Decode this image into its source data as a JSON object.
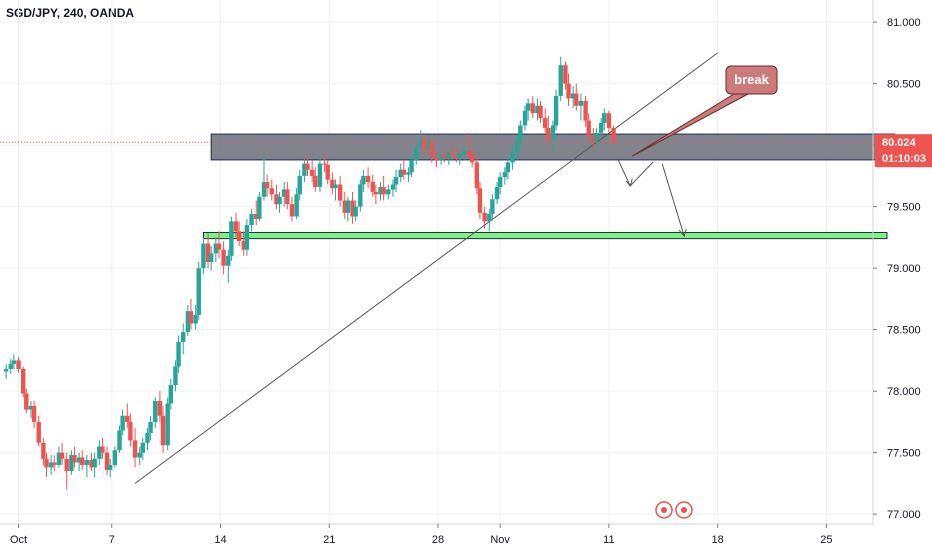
{
  "header": {
    "symbol": "SGD/JPY, 240, OANDA"
  },
  "colors": {
    "up": "#26a69a",
    "down": "#ef5350",
    "grid": "#eef0f3",
    "resistance_zone": "#6b6e78",
    "support_zone": "#7cf57c",
    "price_badge": "#ef5350",
    "callout": "#cd7a7a"
  },
  "chart_data": {
    "type": "candlestick",
    "title": "SGD/JPY, 240, OANDA",
    "ylim": [
      76.92,
      81.18
    ],
    "y_ticks": [
      "81.000",
      "80.500",
      "80.000",
      "79.500",
      "79.000",
      "78.500",
      "78.000",
      "77.500",
      "77.000"
    ],
    "y_tick_values": [
      81.0,
      80.5,
      80.0,
      79.5,
      79.0,
      78.5,
      78.0,
      77.5,
      77.0
    ],
    "x_ticks": [
      "Oct",
      "7",
      "14",
      "21",
      "28",
      "Nov",
      "11",
      "18",
      "25"
    ],
    "x_tick_days": [
      1,
      7,
      14,
      21,
      28,
      32,
      39,
      46,
      53
    ],
    "x_range_days": [
      0,
      56
    ],
    "current_price": "80.024",
    "countdown": "01:10:03",
    "current_price_value": 80.024,
    "grid": true,
    "annotations": {
      "callout_text": "break",
      "resistance_zone": {
        "day_start": 13.4,
        "day_end": 57.4,
        "price_low": 79.88,
        "price_high": 80.09
      },
      "support_zone": {
        "day_start": 12.9,
        "day_end": 56.9,
        "price_low": 79.24,
        "price_high": 79.29
      },
      "trendline": {
        "from": [
          8.5,
          77.25
        ],
        "to": [
          46.0,
          80.75
        ]
      }
    },
    "candles": [
      [
        0.2,
        78.16,
        78.22,
        78.1,
        78.18
      ],
      [
        0.5,
        78.18,
        78.26,
        78.14,
        78.22
      ],
      [
        0.7,
        78.22,
        78.3,
        78.18,
        78.25
      ],
      [
        1.0,
        78.25,
        78.28,
        78.15,
        78.18
      ],
      [
        1.3,
        78.18,
        78.2,
        77.95,
        77.98
      ],
      [
        1.5,
        77.98,
        78.02,
        77.82,
        77.85
      ],
      [
        1.8,
        77.85,
        77.92,
        77.78,
        77.88
      ],
      [
        2.0,
        77.88,
        77.92,
        77.7,
        77.75
      ],
      [
        2.3,
        77.75,
        77.8,
        77.55,
        77.58
      ],
      [
        2.6,
        77.58,
        77.62,
        77.4,
        77.45
      ],
      [
        2.8,
        77.45,
        77.5,
        77.3,
        77.38
      ],
      [
        3.1,
        77.38,
        77.48,
        77.32,
        77.42
      ],
      [
        3.3,
        77.42,
        77.48,
        77.35,
        77.4
      ],
      [
        3.6,
        77.4,
        77.55,
        77.38,
        77.5
      ],
      [
        3.8,
        77.5,
        77.58,
        77.4,
        77.45
      ],
      [
        4.1,
        77.45,
        77.5,
        77.2,
        77.35
      ],
      [
        4.4,
        77.35,
        77.52,
        77.32,
        77.48
      ],
      [
        4.6,
        77.48,
        77.55,
        77.38,
        77.42
      ],
      [
        4.9,
        77.42,
        77.5,
        77.35,
        77.46
      ],
      [
        5.1,
        77.46,
        77.52,
        77.36,
        77.4
      ],
      [
        5.4,
        77.4,
        77.48,
        77.3,
        77.44
      ],
      [
        5.7,
        77.44,
        77.5,
        77.35,
        77.38
      ],
      [
        5.9,
        77.38,
        77.5,
        77.3,
        77.45
      ],
      [
        6.2,
        77.45,
        77.6,
        77.4,
        77.55
      ],
      [
        6.4,
        77.55,
        77.62,
        77.45,
        77.5
      ],
      [
        6.7,
        77.5,
        77.55,
        77.32,
        77.36
      ],
      [
        6.9,
        77.36,
        77.45,
        77.3,
        77.4
      ],
      [
        7.2,
        77.4,
        77.55,
        77.38,
        77.52
      ],
      [
        7.5,
        77.52,
        77.72,
        77.5,
        77.68
      ],
      [
        7.7,
        77.68,
        77.85,
        77.64,
        77.8
      ],
      [
        8.0,
        77.8,
        77.9,
        77.7,
        77.75
      ],
      [
        8.2,
        77.75,
        77.82,
        77.55,
        77.6
      ],
      [
        8.5,
        77.6,
        77.7,
        77.38,
        77.46
      ],
      [
        8.8,
        77.46,
        77.55,
        77.4,
        77.5
      ],
      [
        9.0,
        77.5,
        77.62,
        77.44,
        77.58
      ],
      [
        9.3,
        77.58,
        77.7,
        77.52,
        77.66
      ],
      [
        9.5,
        77.66,
        77.8,
        77.6,
        77.75
      ],
      [
        9.8,
        77.75,
        77.95,
        77.7,
        77.92
      ],
      [
        10.1,
        77.92,
        78.0,
        77.75,
        77.8
      ],
      [
        10.3,
        77.8,
        77.88,
        77.5,
        77.56
      ],
      [
        10.6,
        77.56,
        77.95,
        77.52,
        77.9
      ],
      [
        10.8,
        77.9,
        78.1,
        77.85,
        78.05
      ],
      [
        11.1,
        78.05,
        78.25,
        78.0,
        78.2
      ],
      [
        11.3,
        78.2,
        78.45,
        78.15,
        78.4
      ],
      [
        11.6,
        78.4,
        78.55,
        78.3,
        78.48
      ],
      [
        11.9,
        78.48,
        78.7,
        78.45,
        78.65
      ],
      [
        12.1,
        78.65,
        78.75,
        78.5,
        78.55
      ],
      [
        12.4,
        78.55,
        78.7,
        78.5,
        78.62
      ],
      [
        12.6,
        78.62,
        79.05,
        78.58,
        79.0
      ],
      [
        12.9,
        79.0,
        79.25,
        78.95,
        79.2
      ],
      [
        13.2,
        79.2,
        79.28,
        79.0,
        79.05
      ],
      [
        13.4,
        79.05,
        79.18,
        78.98,
        79.12
      ],
      [
        13.7,
        79.12,
        79.25,
        79.05,
        79.2
      ],
      [
        13.9,
        79.2,
        79.3,
        79.08,
        79.15
      ],
      [
        14.2,
        79.15,
        79.22,
        78.95,
        79.02
      ],
      [
        14.5,
        79.02,
        79.15,
        78.88,
        79.1
      ],
      [
        14.7,
        79.1,
        79.42,
        79.06,
        79.38
      ],
      [
        15.0,
        79.38,
        79.45,
        79.25,
        79.3
      ],
      [
        15.2,
        79.3,
        79.38,
        79.18,
        79.22
      ],
      [
        15.5,
        79.22,
        79.3,
        79.1,
        79.15
      ],
      [
        15.7,
        79.15,
        79.4,
        79.1,
        79.35
      ],
      [
        16.0,
        79.35,
        79.48,
        79.3,
        79.44
      ],
      [
        16.3,
        79.44,
        79.55,
        79.35,
        79.4
      ],
      [
        16.5,
        79.4,
        79.62,
        79.38,
        79.58
      ],
      [
        16.8,
        79.58,
        79.9,
        79.55,
        79.7
      ],
      [
        17.0,
        79.7,
        79.76,
        79.58,
        79.65
      ],
      [
        17.3,
        79.65,
        79.72,
        79.55,
        79.6
      ],
      [
        17.6,
        79.6,
        79.68,
        79.48,
        79.52
      ],
      [
        17.8,
        79.52,
        79.62,
        79.45,
        79.58
      ],
      [
        18.1,
        79.58,
        79.7,
        79.5,
        79.64
      ],
      [
        18.3,
        79.64,
        79.7,
        79.48,
        79.52
      ],
      [
        18.6,
        79.52,
        79.58,
        79.38,
        79.42
      ],
      [
        18.9,
        79.42,
        79.65,
        79.4,
        79.6
      ],
      [
        19.1,
        79.6,
        79.8,
        79.55,
        79.75
      ],
      [
        19.4,
        79.75,
        79.9,
        79.7,
        79.85
      ],
      [
        19.6,
        79.85,
        79.92,
        79.75,
        79.8
      ],
      [
        19.9,
        79.8,
        79.88,
        79.7,
        79.75
      ],
      [
        20.1,
        79.75,
        79.82,
        79.62,
        79.66
      ],
      [
        20.4,
        79.66,
        79.9,
        79.62,
        79.85
      ],
      [
        20.7,
        79.85,
        79.92,
        79.78,
        79.84
      ],
      [
        20.9,
        79.84,
        79.88,
        79.68,
        79.72
      ],
      [
        21.2,
        79.72,
        79.78,
        79.6,
        79.65
      ],
      [
        21.4,
        79.65,
        79.72,
        79.55,
        79.68
      ],
      [
        21.7,
        79.68,
        79.75,
        79.5,
        79.55
      ],
      [
        22.0,
        79.55,
        79.62,
        79.4,
        79.45
      ],
      [
        22.2,
        79.45,
        79.58,
        79.38,
        79.55
      ],
      [
        22.5,
        79.55,
        79.62,
        79.36,
        79.42
      ],
      [
        22.7,
        79.42,
        79.55,
        79.38,
        79.5
      ],
      [
        23.0,
        79.5,
        79.72,
        79.46,
        79.68
      ],
      [
        23.2,
        79.68,
        79.8,
        79.62,
        79.75
      ],
      [
        23.5,
        79.75,
        79.82,
        79.65,
        79.7
      ],
      [
        23.8,
        79.7,
        79.76,
        79.58,
        79.62
      ],
      [
        24.0,
        79.62,
        79.68,
        79.52,
        79.6
      ],
      [
        24.3,
        79.6,
        79.7,
        79.55,
        79.66
      ],
      [
        24.5,
        79.66,
        79.75,
        79.55,
        79.6
      ],
      [
        24.8,
        79.6,
        79.68,
        79.56,
        79.64
      ],
      [
        25.1,
        79.64,
        79.72,
        79.58,
        79.68
      ],
      [
        25.3,
        79.68,
        79.8,
        79.62,
        79.74
      ],
      [
        25.6,
        79.74,
        79.85,
        79.7,
        79.8
      ],
      [
        25.8,
        79.8,
        79.88,
        79.72,
        79.76
      ],
      [
        26.1,
        79.76,
        79.82,
        79.7,
        79.78
      ],
      [
        26.3,
        79.78,
        79.92,
        79.74,
        79.88
      ],
      [
        26.6,
        79.88,
        80.02,
        79.84,
        79.98
      ],
      [
        26.9,
        79.98,
        80.12,
        79.94,
        80.05
      ],
      [
        27.1,
        80.05,
        80.1,
        79.92,
        79.96
      ],
      [
        27.4,
        79.96,
        80.08,
        79.9,
        80.02
      ],
      [
        27.6,
        80.02,
        80.06,
        79.86,
        79.9
      ],
      [
        27.9,
        79.9,
        79.96,
        79.82,
        79.88
      ],
      [
        28.2,
        79.88,
        79.95,
        79.84,
        79.92
      ],
      [
        28.4,
        79.92,
        79.98,
        79.86,
        79.9
      ],
      [
        28.7,
        79.9,
        79.96,
        79.84,
        79.94
      ],
      [
        28.9,
        79.94,
        80.0,
        79.88,
        79.92
      ],
      [
        29.2,
        79.92,
        79.98,
        79.86,
        79.9
      ],
      [
        29.4,
        79.9,
        79.96,
        79.84,
        79.93
      ],
      [
        29.7,
        79.93,
        80.0,
        79.88,
        79.95
      ],
      [
        30.0,
        79.95,
        80.1,
        79.9,
        79.92
      ],
      [
        30.2,
        79.92,
        79.96,
        79.82,
        79.86
      ],
      [
        30.5,
        79.86,
        79.9,
        79.6,
        79.65
      ],
      [
        30.7,
        79.65,
        79.7,
        79.4,
        79.45
      ],
      [
        31.0,
        79.45,
        79.5,
        79.32,
        79.38
      ],
      [
        31.3,
        79.38,
        79.48,
        79.3,
        79.44
      ],
      [
        31.5,
        79.44,
        79.6,
        79.4,
        79.56
      ],
      [
        31.8,
        79.56,
        79.7,
        79.52,
        79.66
      ],
      [
        32.0,
        79.66,
        79.78,
        79.6,
        79.74
      ],
      [
        32.3,
        79.74,
        79.82,
        79.68,
        79.78
      ],
      [
        32.5,
        79.78,
        79.9,
        79.72,
        79.86
      ],
      [
        32.8,
        79.86,
        79.98,
        79.8,
        79.94
      ],
      [
        33.1,
        79.94,
        80.08,
        79.88,
        80.04
      ],
      [
        33.3,
        80.04,
        80.2,
        80.0,
        80.16
      ],
      [
        33.6,
        80.16,
        80.32,
        80.12,
        80.28
      ],
      [
        33.8,
        80.28,
        80.38,
        80.2,
        80.34
      ],
      [
        34.1,
        80.34,
        80.4,
        80.22,
        80.26
      ],
      [
        34.4,
        80.26,
        80.38,
        80.2,
        80.32
      ],
      [
        34.6,
        80.32,
        80.36,
        80.18,
        80.22
      ],
      [
        34.9,
        80.22,
        80.3,
        80.1,
        80.14
      ],
      [
        35.1,
        80.14,
        80.24,
        80.0,
        80.04
      ],
      [
        35.4,
        80.04,
        80.2,
        79.94,
        80.16
      ],
      [
        35.6,
        80.16,
        80.45,
        80.12,
        80.4
      ],
      [
        35.9,
        80.4,
        80.72,
        80.36,
        80.65
      ],
      [
        36.2,
        80.65,
        80.68,
        80.45,
        80.5
      ],
      [
        36.4,
        80.5,
        80.58,
        80.32,
        80.38
      ],
      [
        36.7,
        80.38,
        80.48,
        80.3,
        80.42
      ],
      [
        36.9,
        80.42,
        80.5,
        80.28,
        80.32
      ],
      [
        37.2,
        80.32,
        80.42,
        80.2,
        80.36
      ],
      [
        37.5,
        80.36,
        80.4,
        80.15,
        80.2
      ],
      [
        37.7,
        80.2,
        80.26,
        80.02,
        80.08
      ],
      [
        38.0,
        80.08,
        80.14,
        79.98,
        80.04
      ],
      [
        38.2,
        80.04,
        80.14,
        79.98,
        80.1
      ],
      [
        38.5,
        80.1,
        80.22,
        80.06,
        80.18
      ],
      [
        38.7,
        80.18,
        80.3,
        80.12,
        80.26
      ],
      [
        39.0,
        80.26,
        80.28,
        80.1,
        80.14
      ],
      [
        39.3,
        80.14,
        80.16,
        80.0,
        80.02
      ]
    ]
  }
}
